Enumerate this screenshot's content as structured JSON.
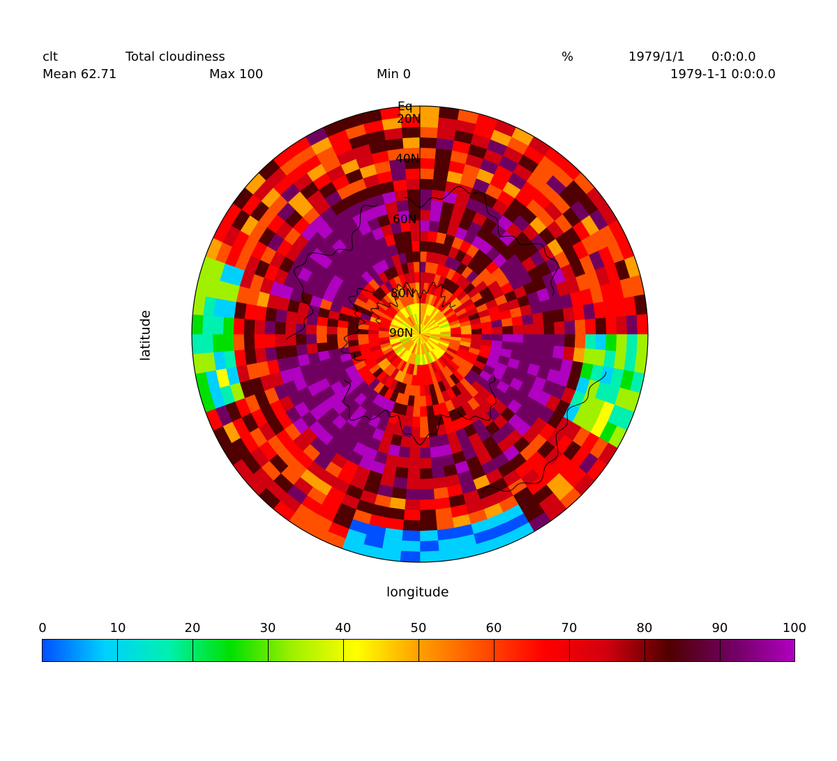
{
  "header": {
    "variable": "clt",
    "long_name": "Total cloudiness",
    "units": "%",
    "date": "1979/1/1",
    "time": "0:0:0.0",
    "mean": "Mean 62.71",
    "max": "Max 100",
    "min": "Min 0",
    "timestamp": "1979-1-1 0:0:0.0"
  },
  "axes": {
    "xlabel": "longitude",
    "ylabel": "latitude"
  },
  "map": {
    "projection": "north-polar",
    "lat_labels": [
      "Eq",
      "20N",
      "40N",
      "60N",
      "80N",
      "90N"
    ]
  },
  "colorbar": {
    "ticks": [
      "0",
      "10",
      "20",
      "30",
      "40",
      "50",
      "60",
      "70",
      "80",
      "90",
      "100"
    ],
    "colors": [
      "#0050ff",
      "#00d0ff",
      "#00f0b0",
      "#00e000",
      "#a0f000",
      "#ffff00",
      "#ffa000",
      "#ff5000",
      "#ff0000",
      "#d00010",
      "#500000",
      "#700060",
      "#b000c0"
    ]
  }
}
